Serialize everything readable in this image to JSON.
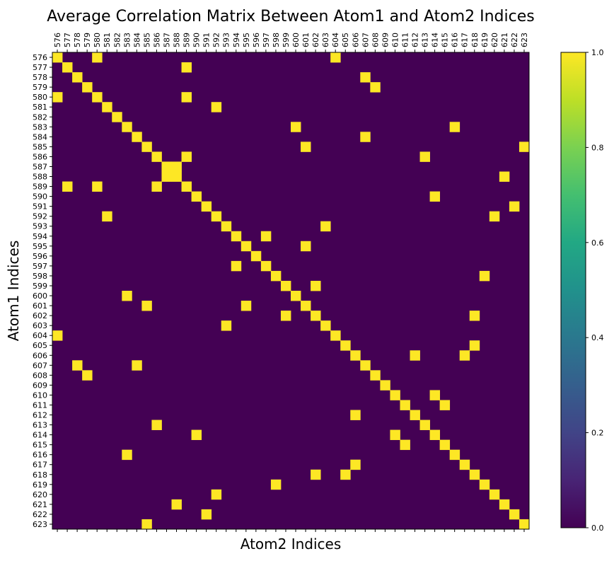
{
  "chart_data": {
    "type": "heatmap",
    "title": "Average Correlation Matrix Between Atom1 and Atom2 Indices",
    "xlabel": "Atom2 Indices",
    "ylabel": "Atom1 Indices",
    "x_ticks": [
      "576",
      "577",
      "578",
      "579",
      "580",
      "581",
      "582",
      "583",
      "584",
      "585",
      "586",
      "587",
      "588",
      "589",
      "590",
      "591",
      "592",
      "593",
      "594",
      "595",
      "596",
      "597",
      "598",
      "599",
      "600",
      "601",
      "602",
      "603",
      "604",
      "605",
      "606",
      "607",
      "608",
      "609",
      "610",
      "611",
      "612",
      "613",
      "614",
      "615",
      "616",
      "617",
      "618",
      "619",
      "620",
      "621",
      "622",
      "623"
    ],
    "y_ticks": [
      "576",
      "577",
      "578",
      "579",
      "580",
      "581",
      "582",
      "583",
      "584",
      "585",
      "586",
      "587",
      "588",
      "589",
      "590",
      "591",
      "592",
      "593",
      "594",
      "595",
      "596",
      "597",
      "598",
      "599",
      "600",
      "601",
      "602",
      "603",
      "604",
      "605",
      "606",
      "607",
      "608",
      "609",
      "610",
      "611",
      "612",
      "613",
      "614",
      "615",
      "616",
      "617",
      "618",
      "619",
      "620",
      "621",
      "622",
      "623"
    ],
    "value_range": [
      0.0,
      1.0
    ],
    "colormap": "viridis",
    "colorbar_ticks": [
      "0.0",
      "0.2",
      "0.4",
      "0.6",
      "0.8",
      "1.0"
    ],
    "background_value": 0.0,
    "high_cells_value": 1.0,
    "high_cells": [
      [
        576,
        576
      ],
      [
        576,
        580
      ],
      [
        576,
        604
      ],
      [
        577,
        577
      ],
      [
        577,
        589
      ],
      [
        578,
        578
      ],
      [
        578,
        607
      ],
      [
        579,
        579
      ],
      [
        579,
        608
      ],
      [
        580,
        576
      ],
      [
        580,
        580
      ],
      [
        580,
        589
      ],
      [
        581,
        581
      ],
      [
        581,
        592
      ],
      [
        582,
        582
      ],
      [
        583,
        583
      ],
      [
        583,
        600
      ],
      [
        583,
        616
      ],
      [
        584,
        584
      ],
      [
        584,
        607
      ],
      [
        585,
        585
      ],
      [
        585,
        601
      ],
      [
        585,
        623
      ],
      [
        586,
        586
      ],
      [
        586,
        589
      ],
      [
        586,
        613
      ],
      [
        587,
        587
      ],
      [
        587,
        588
      ],
      [
        588,
        587
      ],
      [
        588,
        588
      ],
      [
        588,
        621
      ],
      [
        589,
        577
      ],
      [
        589,
        580
      ],
      [
        589,
        586
      ],
      [
        589,
        589
      ],
      [
        590,
        590
      ],
      [
        590,
        614
      ],
      [
        591,
        591
      ],
      [
        591,
        622
      ],
      [
        592,
        581
      ],
      [
        592,
        592
      ],
      [
        592,
        620
      ],
      [
        593,
        593
      ],
      [
        593,
        603
      ],
      [
        594,
        594
      ],
      [
        594,
        597
      ],
      [
        595,
        595
      ],
      [
        595,
        601
      ],
      [
        596,
        596
      ],
      [
        597,
        594
      ],
      [
        597,
        597
      ],
      [
        598,
        598
      ],
      [
        598,
        619
      ],
      [
        599,
        599
      ],
      [
        599,
        602
      ],
      [
        600,
        583
      ],
      [
        600,
        600
      ],
      [
        601,
        585
      ],
      [
        601,
        595
      ],
      [
        601,
        601
      ],
      [
        602,
        599
      ],
      [
        602,
        602
      ],
      [
        602,
        618
      ],
      [
        603,
        593
      ],
      [
        603,
        603
      ],
      [
        604,
        576
      ],
      [
        604,
        604
      ],
      [
        605,
        605
      ],
      [
        605,
        618
      ],
      [
        606,
        606
      ],
      [
        606,
        612
      ],
      [
        606,
        617
      ],
      [
        607,
        578
      ],
      [
        607,
        584
      ],
      [
        607,
        607
      ],
      [
        608,
        579
      ],
      [
        608,
        608
      ],
      [
        609,
        609
      ],
      [
        610,
        610
      ],
      [
        610,
        614
      ],
      [
        611,
        611
      ],
      [
        611,
        615
      ],
      [
        612,
        606
      ],
      [
        612,
        612
      ],
      [
        613,
        586
      ],
      [
        613,
        613
      ],
      [
        614,
        590
      ],
      [
        614,
        610
      ],
      [
        614,
        614
      ],
      [
        615,
        611
      ],
      [
        615,
        615
      ],
      [
        616,
        583
      ],
      [
        616,
        616
      ],
      [
        617,
        606
      ],
      [
        617,
        617
      ],
      [
        618,
        602
      ],
      [
        618,
        605
      ],
      [
        618,
        618
      ],
      [
        619,
        598
      ],
      [
        619,
        619
      ],
      [
        620,
        592
      ],
      [
        620,
        620
      ],
      [
        621,
        588
      ],
      [
        621,
        621
      ],
      [
        622,
        591
      ],
      [
        622,
        622
      ],
      [
        623,
        585
      ],
      [
        623,
        623
      ]
    ],
    "colors": {
      "low": "#440154",
      "high": "#fde725"
    }
  }
}
